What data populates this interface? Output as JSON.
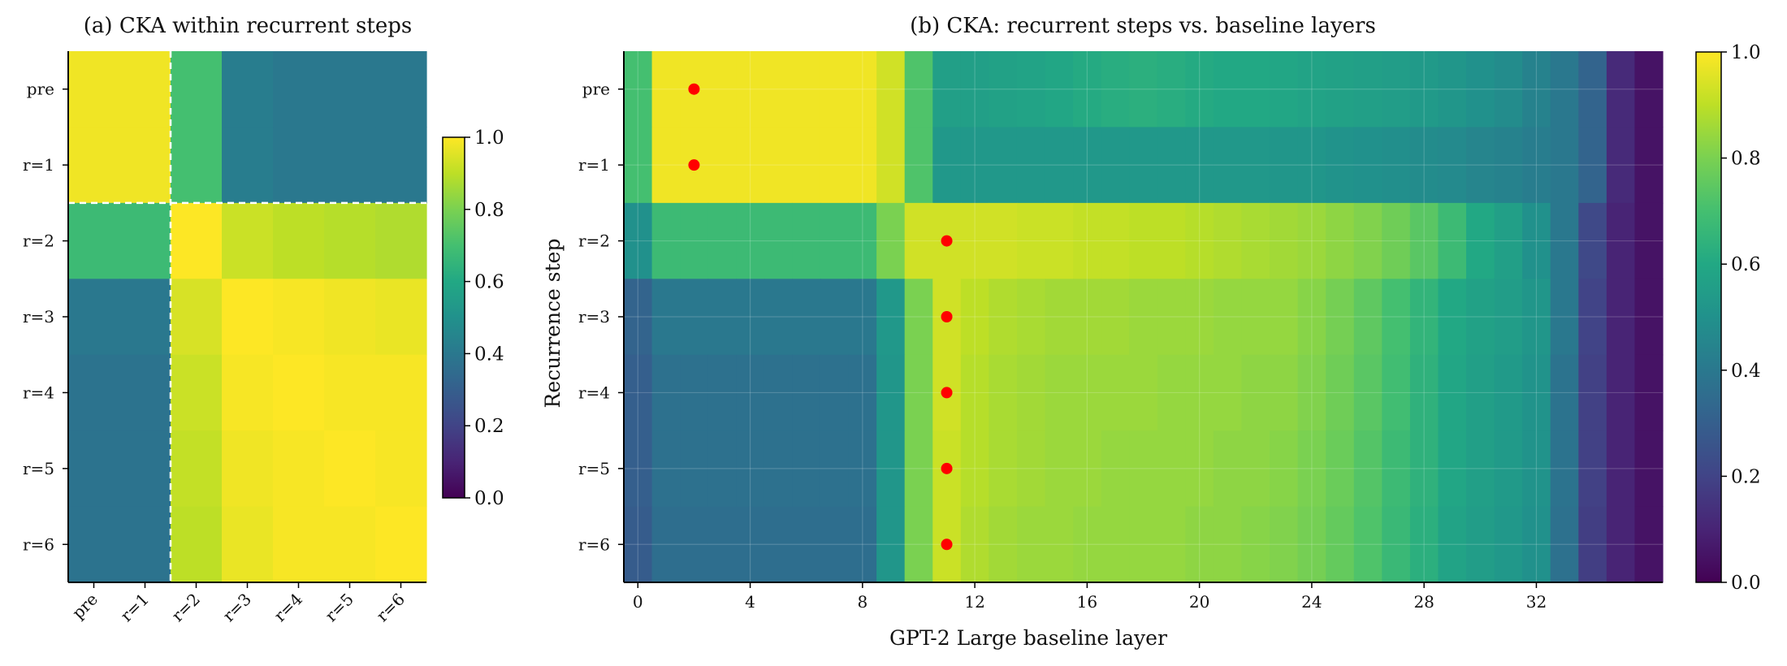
{
  "chart_data": [
    {
      "type": "heatmap",
      "title": "(a) CKA within recurrent steps",
      "xlabel": "",
      "ylabel": "",
      "x_categories": [
        "pre",
        "r=1",
        "r=2",
        "r=3",
        "r=4",
        "r=5",
        "r=6"
      ],
      "y_categories": [
        "pre",
        "r=1",
        "r=2",
        "r=3",
        "r=4",
        "r=5",
        "r=6"
      ],
      "colormap": "viridis",
      "vlim": [
        0,
        1
      ],
      "colorbar_ticks": [
        "0.0",
        "0.2",
        "0.4",
        "0.6",
        "0.8",
        "1.0"
      ],
      "dashed_separator_after_index": 1,
      "values": [
        [
          0.98,
          0.98,
          0.7,
          0.42,
          0.4,
          0.4,
          0.4
        ],
        [
          0.98,
          0.98,
          0.7,
          0.42,
          0.4,
          0.4,
          0.4
        ],
        [
          0.68,
          0.68,
          1.0,
          0.92,
          0.9,
          0.89,
          0.88
        ],
        [
          0.4,
          0.4,
          0.94,
          1.0,
          0.99,
          0.98,
          0.97
        ],
        [
          0.38,
          0.38,
          0.92,
          0.99,
          1.0,
          0.99,
          0.99
        ],
        [
          0.38,
          0.38,
          0.91,
          0.98,
          0.99,
          1.0,
          0.99
        ],
        [
          0.38,
          0.38,
          0.9,
          0.97,
          0.99,
          0.99,
          1.0
        ]
      ]
    },
    {
      "type": "heatmap",
      "title": "(b) CKA: recurrent steps vs. baseline layers",
      "xlabel": "GPT-2 Large baseline layer",
      "ylabel": "Recurrence step",
      "x_range": [
        0,
        35
      ],
      "x_ticks": [
        0,
        4,
        8,
        12,
        16,
        20,
        24,
        28,
        32
      ],
      "y_categories": [
        "pre",
        "r=1",
        "r=2",
        "r=3",
        "r=4",
        "r=5",
        "r=6"
      ],
      "colormap": "viridis",
      "vlim": [
        0,
        1
      ],
      "colorbar_ticks": [
        "0.0",
        "0.2",
        "0.4",
        "0.6",
        "0.8",
        "1.0"
      ],
      "max_markers": [
        {
          "row": "pre",
          "layer": 2
        },
        {
          "row": "r=1",
          "layer": 2
        },
        {
          "row": "r=2",
          "layer": 11
        },
        {
          "row": "r=3",
          "layer": 11
        },
        {
          "row": "r=4",
          "layer": 11
        },
        {
          "row": "r=5",
          "layer": 11
        },
        {
          "row": "r=6",
          "layer": 11
        }
      ],
      "marker_color": "#ff0000",
      "values": [
        [
          0.7,
          0.98,
          0.98,
          0.98,
          0.98,
          0.98,
          0.98,
          0.98,
          0.98,
          0.93,
          0.72,
          0.56,
          0.56,
          0.57,
          0.58,
          0.59,
          0.61,
          0.62,
          0.63,
          0.62,
          0.61,
          0.6,
          0.6,
          0.59,
          0.58,
          0.57,
          0.56,
          0.55,
          0.54,
          0.52,
          0.5,
          0.48,
          0.44,
          0.4,
          0.32,
          0.12,
          0.05
        ],
        [
          0.7,
          0.98,
          0.98,
          0.98,
          0.98,
          0.98,
          0.98,
          0.98,
          0.98,
          0.93,
          0.72,
          0.53,
          0.53,
          0.53,
          0.53,
          0.53,
          0.53,
          0.53,
          0.53,
          0.53,
          0.53,
          0.53,
          0.53,
          0.52,
          0.52,
          0.51,
          0.5,
          0.49,
          0.48,
          0.47,
          0.45,
          0.44,
          0.42,
          0.4,
          0.32,
          0.12,
          0.05
        ],
        [
          0.5,
          0.68,
          0.68,
          0.68,
          0.68,
          0.68,
          0.68,
          0.68,
          0.68,
          0.8,
          0.93,
          0.93,
          0.93,
          0.93,
          0.92,
          0.92,
          0.91,
          0.91,
          0.9,
          0.9,
          0.89,
          0.88,
          0.87,
          0.86,
          0.85,
          0.83,
          0.81,
          0.78,
          0.74,
          0.68,
          0.6,
          0.56,
          0.5,
          0.4,
          0.22,
          0.1,
          0.05
        ],
        [
          0.32,
          0.4,
          0.4,
          0.4,
          0.4,
          0.4,
          0.4,
          0.4,
          0.4,
          0.53,
          0.8,
          0.93,
          0.9,
          0.88,
          0.87,
          0.86,
          0.86,
          0.86,
          0.85,
          0.85,
          0.85,
          0.84,
          0.84,
          0.84,
          0.82,
          0.79,
          0.75,
          0.7,
          0.65,
          0.6,
          0.57,
          0.55,
          0.52,
          0.4,
          0.2,
          0.1,
          0.05
        ],
        [
          0.3,
          0.37,
          0.37,
          0.37,
          0.37,
          0.37,
          0.37,
          0.37,
          0.37,
          0.52,
          0.8,
          0.93,
          0.89,
          0.87,
          0.86,
          0.85,
          0.85,
          0.85,
          0.85,
          0.84,
          0.84,
          0.84,
          0.83,
          0.83,
          0.81,
          0.78,
          0.74,
          0.69,
          0.64,
          0.59,
          0.56,
          0.54,
          0.51,
          0.38,
          0.19,
          0.1,
          0.05
        ],
        [
          0.3,
          0.37,
          0.37,
          0.37,
          0.37,
          0.37,
          0.37,
          0.37,
          0.37,
          0.52,
          0.8,
          0.92,
          0.89,
          0.87,
          0.86,
          0.85,
          0.85,
          0.84,
          0.84,
          0.84,
          0.84,
          0.83,
          0.83,
          0.82,
          0.8,
          0.77,
          0.73,
          0.68,
          0.64,
          0.59,
          0.56,
          0.54,
          0.51,
          0.38,
          0.19,
          0.1,
          0.05
        ],
        [
          0.29,
          0.36,
          0.36,
          0.36,
          0.36,
          0.36,
          0.36,
          0.36,
          0.36,
          0.52,
          0.8,
          0.92,
          0.88,
          0.86,
          0.85,
          0.85,
          0.84,
          0.84,
          0.84,
          0.84,
          0.83,
          0.83,
          0.82,
          0.81,
          0.79,
          0.76,
          0.72,
          0.67,
          0.63,
          0.58,
          0.55,
          0.53,
          0.5,
          0.37,
          0.18,
          0.1,
          0.05
        ]
      ]
    }
  ]
}
